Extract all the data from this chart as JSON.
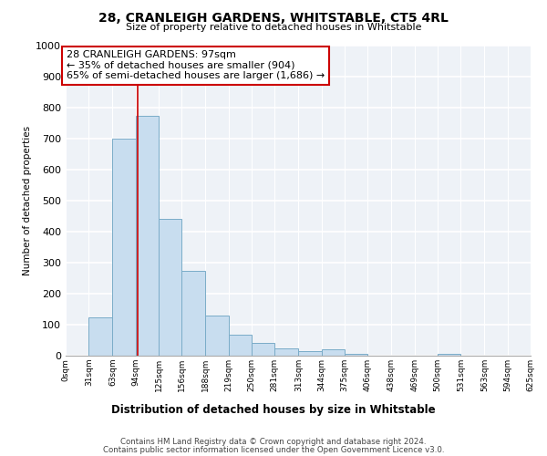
{
  "title": "28, CRANLEIGH GARDENS, WHITSTABLE, CT5 4RL",
  "subtitle": "Size of property relative to detached houses in Whitstable",
  "xlabel": "Distribution of detached houses by size in Whitstable",
  "ylabel": "Number of detached properties",
  "bar_color": "#c8ddef",
  "bar_edge_color": "#7aacc8",
  "background_color": "#ffffff",
  "plot_bg_color": "#eef2f7",
  "grid_color": "#ffffff",
  "annotation_box_color": "#cc0000",
  "annotation_line1": "28 CRANLEIGH GARDENS: 97sqm",
  "annotation_line2": "← 35% of detached houses are smaller (904)",
  "annotation_line3": "65% of semi-detached houses are larger (1,686) →",
  "property_size": 97,
  "vline_color": "#cc0000",
  "bin_edges": [
    0,
    31,
    63,
    94,
    125,
    156,
    188,
    219,
    250,
    281,
    313,
    344,
    375,
    406,
    438,
    469,
    500,
    531,
    563,
    594,
    625
  ],
  "bar_heights": [
    0,
    125,
    700,
    775,
    440,
    275,
    130,
    68,
    40,
    25,
    15,
    20,
    5,
    0,
    0,
    0,
    5,
    0,
    0,
    0,
    0
  ],
  "tick_labels": [
    "0sqm",
    "31sqm",
    "63sqm",
    "94sqm",
    "125sqm",
    "156sqm",
    "188sqm",
    "219sqm",
    "250sqm",
    "281sqm",
    "313sqm",
    "344sqm",
    "375sqm",
    "406sqm",
    "438sqm",
    "469sqm",
    "500sqm",
    "531sqm",
    "563sqm",
    "594sqm",
    "625sqm"
  ],
  "ylim": [
    0,
    1000
  ],
  "yticks": [
    0,
    100,
    200,
    300,
    400,
    500,
    600,
    700,
    800,
    900,
    1000
  ],
  "footnote1": "Contains HM Land Registry data © Crown copyright and database right 2024.",
  "footnote2": "Contains public sector information licensed under the Open Government Licence v3.0."
}
